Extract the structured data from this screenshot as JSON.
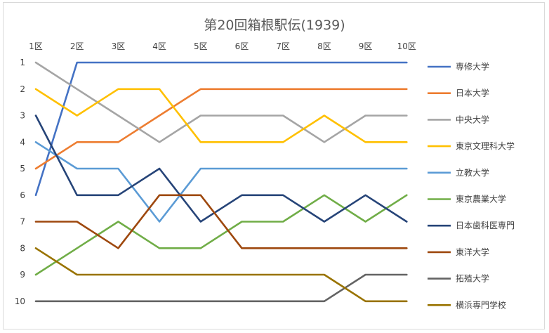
{
  "chart_data": {
    "type": "line",
    "title": "第20回箱根駅伝(1939)",
    "categories": [
      "1区",
      "2区",
      "3区",
      "4区",
      "5区",
      "6区",
      "7区",
      "8区",
      "9区",
      "10区"
    ],
    "y_ticks": [
      "1",
      "2",
      "3",
      "4",
      "5",
      "6",
      "7",
      "8",
      "9",
      "10"
    ],
    "ylim": [
      1,
      10
    ],
    "y_reversed": true,
    "x_axis_position": "top",
    "grid": false,
    "legend_position": "right",
    "series": [
      {
        "name": "専修大学",
        "color": "#4472C4",
        "values": [
          6,
          1,
          1,
          1,
          1,
          1,
          1,
          1,
          1,
          1
        ]
      },
      {
        "name": "日本大学",
        "color": "#ED7D31",
        "values": [
          5,
          4,
          4,
          3,
          2,
          2,
          2,
          2,
          2,
          2
        ]
      },
      {
        "name": "中央大学",
        "color": "#A5A5A5",
        "values": [
          1,
          2,
          3,
          4,
          3,
          3,
          3,
          4,
          3,
          3
        ]
      },
      {
        "name": "東京文理科大学",
        "color": "#FFC000",
        "values": [
          2,
          3,
          2,
          2,
          4,
          4,
          4,
          3,
          4,
          4
        ]
      },
      {
        "name": "立教大学",
        "color": "#5B9BD5",
        "values": [
          4,
          5,
          5,
          7,
          5,
          5,
          5,
          5,
          5,
          5
        ]
      },
      {
        "name": "東京農業大学",
        "color": "#70AD47",
        "values": [
          9,
          8,
          7,
          8,
          8,
          7,
          7,
          6,
          7,
          6
        ]
      },
      {
        "name": "日本歯科医専門",
        "color": "#264478",
        "values": [
          3,
          6,
          6,
          5,
          7,
          6,
          6,
          7,
          6,
          7
        ]
      },
      {
        "name": "東洋大学",
        "color": "#9E480E",
        "values": [
          7,
          7,
          8,
          6,
          6,
          8,
          8,
          8,
          8,
          8
        ]
      },
      {
        "name": "拓殖大学",
        "color": "#636363",
        "values": [
          10,
          10,
          10,
          10,
          10,
          10,
          10,
          10,
          9,
          9
        ]
      },
      {
        "name": "横浜専門学校",
        "color": "#997300",
        "values": [
          8,
          9,
          9,
          9,
          9,
          9,
          9,
          9,
          10,
          10
        ]
      }
    ]
  }
}
